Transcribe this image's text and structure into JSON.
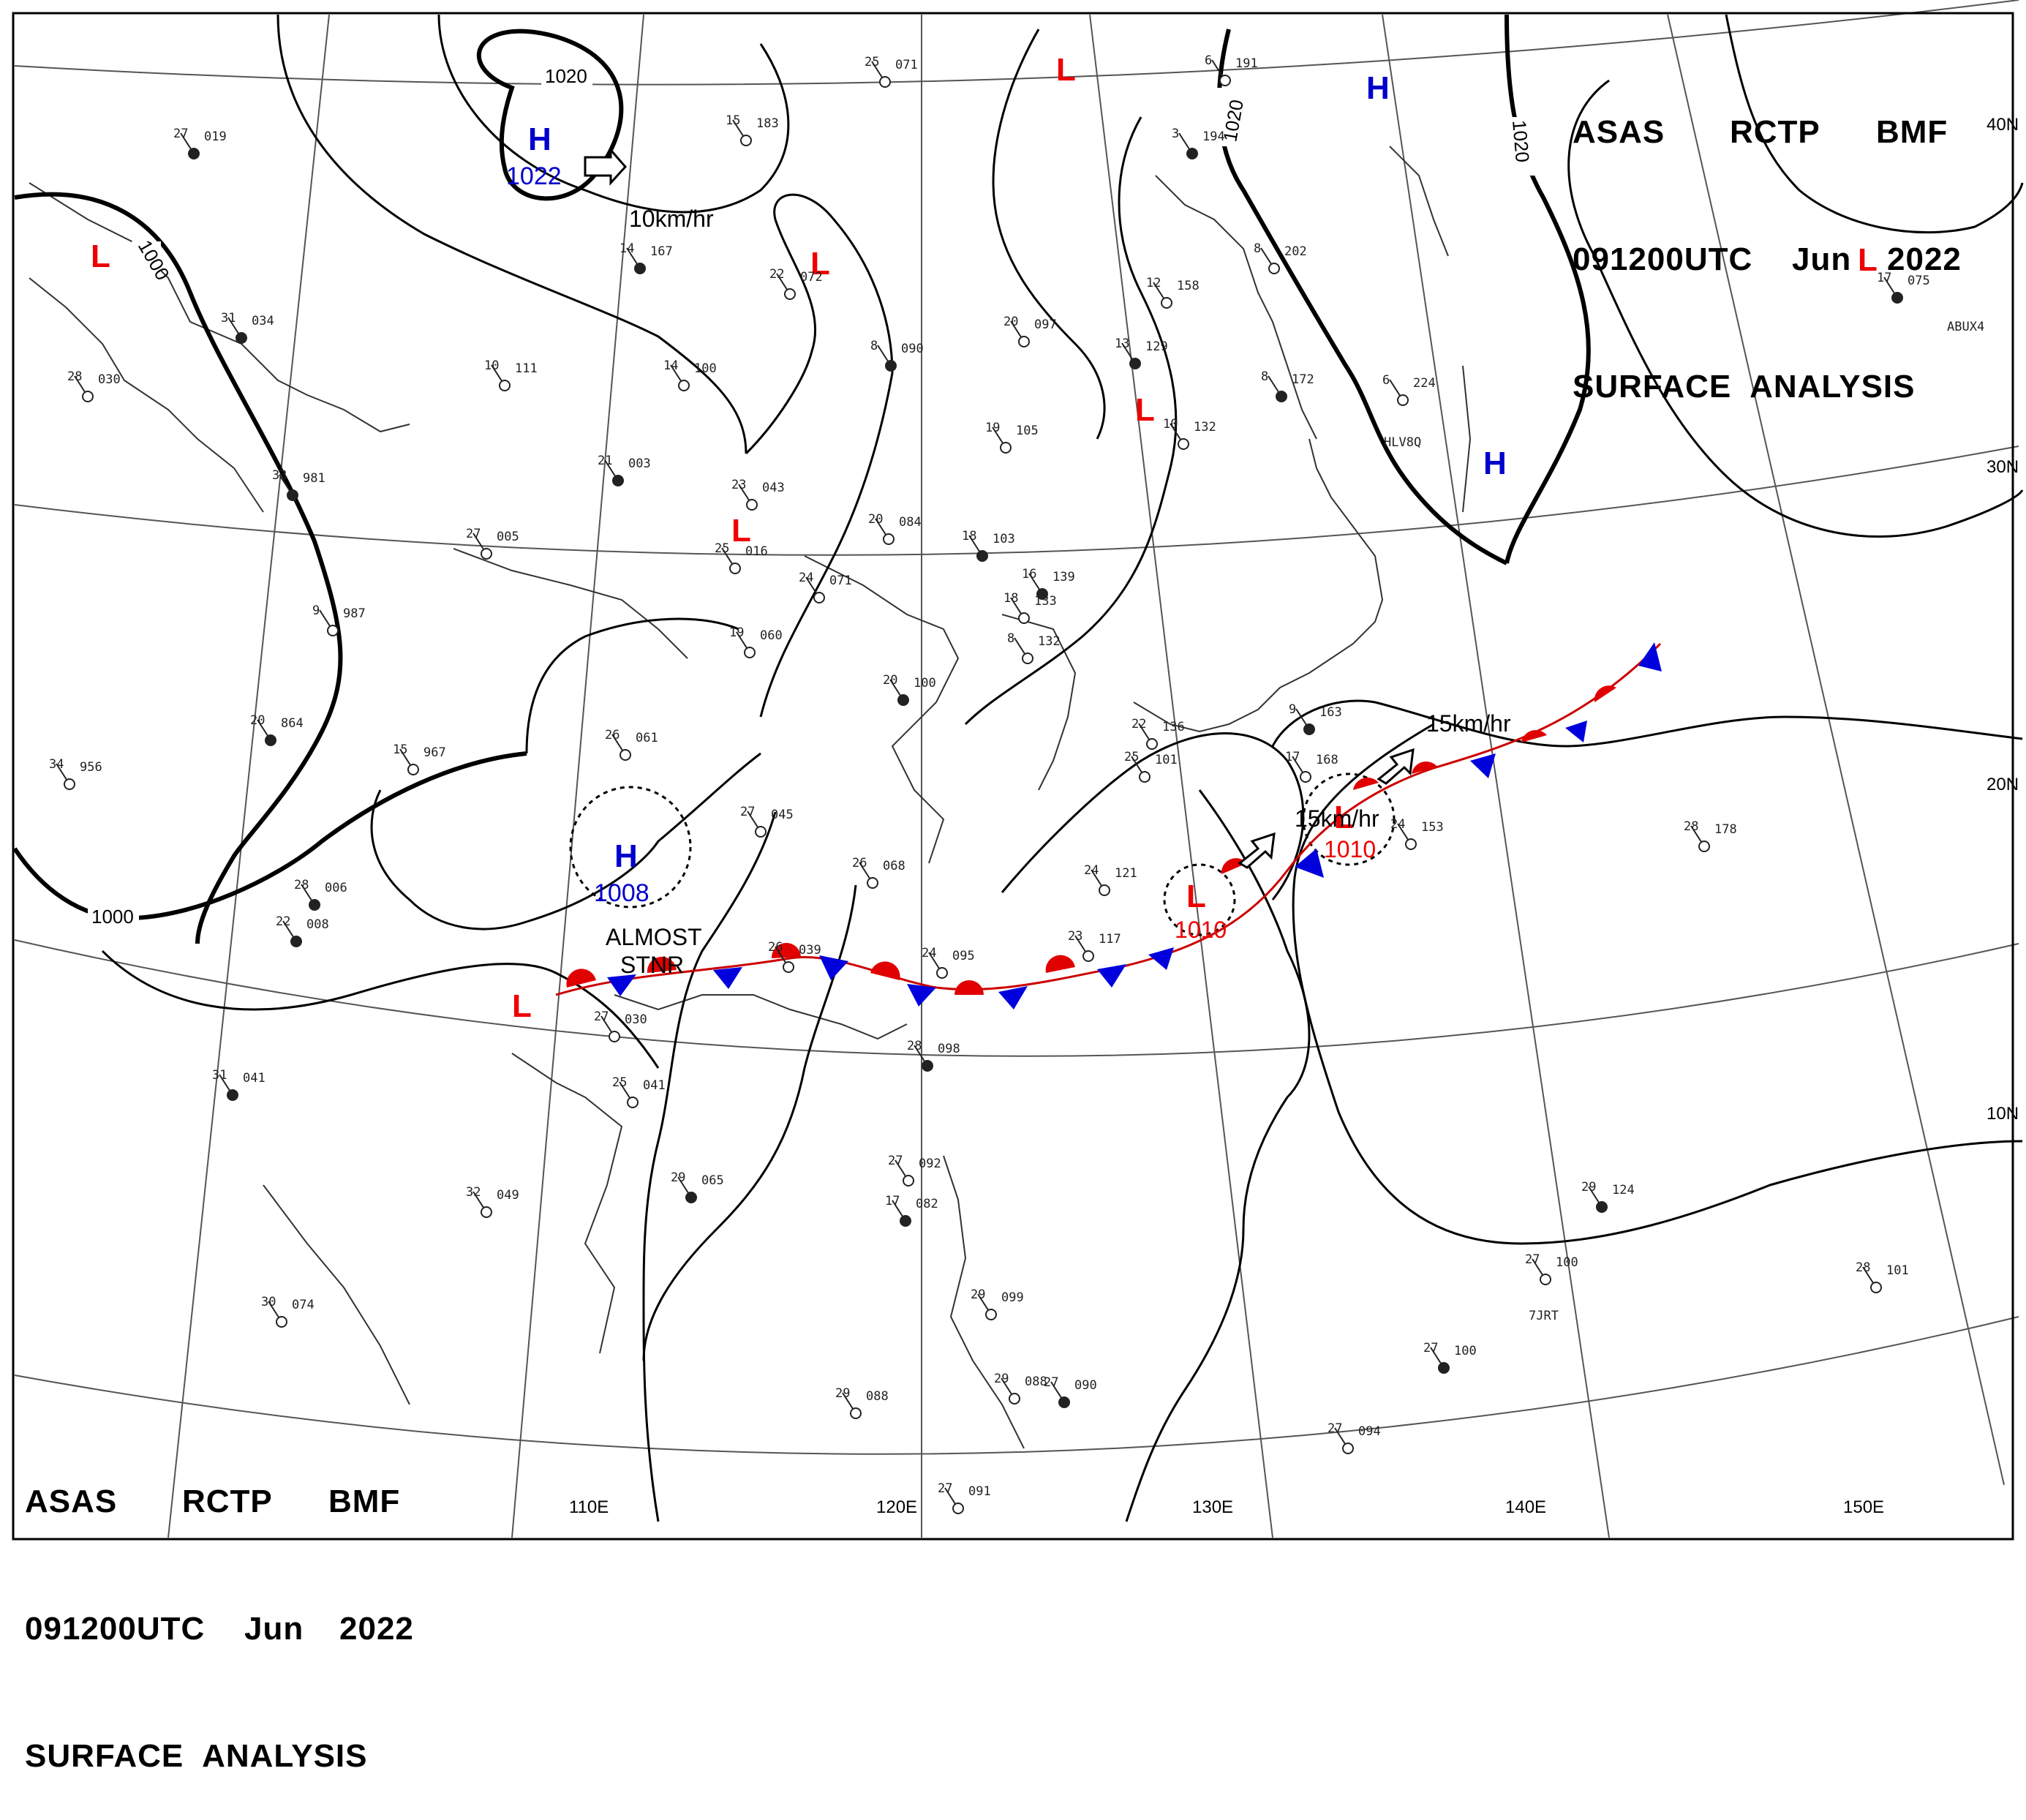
{
  "header": {
    "line1": [
      "ASAS",
      "RCTP",
      "BMF"
    ],
    "line2": [
      "091200UTC",
      "Jun",
      "2022"
    ],
    "line3": "SURFACE  ANALYSIS"
  },
  "isobars": [
    "1020",
    "1020",
    "1020",
    "1000",
    "1000"
  ],
  "pressure_systems": [
    {
      "type": "H",
      "value": "1022",
      "color": "#0000cc"
    },
    {
      "type": "H",
      "value": "1008",
      "color": "#0000cc"
    },
    {
      "type": "H",
      "value": "",
      "color": "#0000cc"
    },
    {
      "type": "H",
      "value": "",
      "color": "#0000cc"
    },
    {
      "type": "L",
      "value": "1010",
      "color": "#ee0000"
    },
    {
      "type": "L",
      "value": "1010",
      "color": "#ee0000"
    },
    {
      "type": "L",
      "value": "",
      "color": "#ee0000"
    },
    {
      "type": "L",
      "value": "",
      "color": "#ee0000"
    },
    {
      "type": "L",
      "value": "",
      "color": "#ee0000"
    },
    {
      "type": "L",
      "value": "",
      "color": "#ee0000"
    },
    {
      "type": "L",
      "value": "",
      "color": "#ee0000"
    },
    {
      "type": "L",
      "value": "",
      "color": "#ee0000"
    }
  ],
  "motion_labels": [
    "10km/hr",
    "15km/hr",
    "15km/hr"
  ],
  "annotation": [
    "ALMOST",
    "STNR"
  ],
  "lon_labels": [
    "110E",
    "120E",
    "130E",
    "140E",
    "150E"
  ],
  "lat_labels": [
    "40N",
    "30N",
    "20N",
    "10N"
  ],
  "ship_ids": [
    "HLV8Q",
    "ABUX4",
    "7JRT"
  ],
  "stations": [
    {
      "t": "27",
      "p": "019"
    },
    {
      "t": "25",
      "p": "071"
    },
    {
      "t": "15",
      "p": "183"
    },
    {
      "t": "14",
      "p": "167"
    },
    {
      "t": "22",
      "p": "072"
    },
    {
      "t": "28",
      "p": "030"
    },
    {
      "t": "31",
      "p": "034"
    },
    {
      "t": "10",
      "p": "111"
    },
    {
      "t": "14",
      "p": "100"
    },
    {
      "t": "21",
      "p": "003"
    },
    {
      "t": "23",
      "p": "043"
    },
    {
      "t": "25",
      "p": "016"
    },
    {
      "t": "33",
      "p": "981"
    },
    {
      "t": "27",
      "p": "005"
    },
    {
      "t": "9",
      "p": "987"
    },
    {
      "t": "20",
      "p": "864"
    },
    {
      "t": "15",
      "p": "967"
    },
    {
      "t": "34",
      "p": "956"
    },
    {
      "t": "28",
      "p": "006"
    },
    {
      "t": "26",
      "p": "061"
    },
    {
      "t": "27",
      "p": "045"
    },
    {
      "t": "22",
      "p": "008"
    },
    {
      "t": "26",
      "p": "039"
    },
    {
      "t": "27",
      "p": "030"
    },
    {
      "t": "31",
      "p": "041"
    },
    {
      "t": "25",
      "p": "041"
    },
    {
      "t": "32",
      "p": "049"
    },
    {
      "t": "29",
      "p": "065"
    },
    {
      "t": "30",
      "p": "074"
    },
    {
      "t": "20",
      "p": "097"
    },
    {
      "t": "8",
      "p": "090"
    },
    {
      "t": "19",
      "p": "105"
    },
    {
      "t": "20",
      "p": "084"
    },
    {
      "t": "18",
      "p": "103"
    },
    {
      "t": "24",
      "p": "071"
    },
    {
      "t": "19",
      "p": "060"
    },
    {
      "t": "16",
      "p": "139"
    },
    {
      "t": "18",
      "p": "133"
    },
    {
      "t": "8",
      "p": "132"
    },
    {
      "t": "20",
      "p": "100"
    },
    {
      "t": "26",
      "p": "068"
    },
    {
      "t": "24",
      "p": "095"
    },
    {
      "t": "28",
      "p": "098"
    },
    {
      "t": "23",
      "p": "117"
    },
    {
      "t": "24",
      "p": "121"
    },
    {
      "t": "13",
      "p": "129"
    },
    {
      "t": "10",
      "p": "132"
    },
    {
      "t": "12",
      "p": "158"
    },
    {
      "t": "3",
      "p": "194"
    },
    {
      "t": "6",
      "p": "191"
    },
    {
      "t": "8",
      "p": "202"
    },
    {
      "t": "8",
      "p": "172"
    },
    {
      "t": "6",
      "p": "224"
    },
    {
      "t": "17",
      "p": "168"
    },
    {
      "t": "9",
      "p": "163"
    },
    {
      "t": "22",
      "p": "136"
    },
    {
      "t": "25",
      "p": "101"
    },
    {
      "t": "17",
      "p": "075"
    },
    {
      "t": "28",
      "p": "178"
    },
    {
      "t": "24",
      "p": "153"
    },
    {
      "t": "29",
      "p": "124"
    },
    {
      "t": "27",
      "p": "100"
    },
    {
      "t": "28",
      "p": "101"
    },
    {
      "t": "27",
      "p": "100"
    },
    {
      "t": "27",
      "p": "094"
    },
    {
      "t": "27",
      "p": "092"
    },
    {
      "t": "17",
      "p": "082"
    },
    {
      "t": "29",
      "p": "088"
    },
    {
      "t": "29",
      "p": "088"
    },
    {
      "t": "27",
      "p": "090"
    },
    {
      "t": "27",
      "p": "091"
    },
    {
      "t": "29",
      "p": "099"
    }
  ]
}
